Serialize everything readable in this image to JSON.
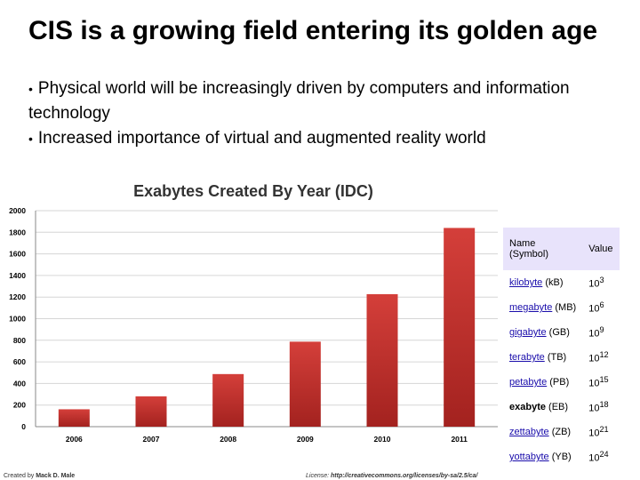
{
  "slide": {
    "title": "CIS is a growing field entering its golden age",
    "bullets": [
      "Physical world will be increasingly driven by computers and information technology",
      "Increased importance of virtual and augmented reality world"
    ]
  },
  "chart_data": {
    "type": "bar",
    "title": "Exabytes Created By Year (IDC)",
    "categories": [
      "2006",
      "2007",
      "2008",
      "2009",
      "2010",
      "2011"
    ],
    "values": [
      161,
      281,
      487,
      787,
      1227,
      1840
    ],
    "ylim": [
      0,
      2000
    ],
    "yticks": [
      "0",
      "200",
      "400",
      "600",
      "800",
      "1000",
      "1200",
      "1400",
      "1600",
      "1800",
      "2000"
    ],
    "grid": true,
    "bar_color": "#c8302e"
  },
  "units_table": {
    "headers": [
      "Name\n(Symbol)",
      "Value"
    ],
    "rows": [
      {
        "name": "kilobyte",
        "symbol": "(kB)",
        "base": "10",
        "exp": "3",
        "link": true
      },
      {
        "name": "megabyte",
        "symbol": "(MB)",
        "base": "10",
        "exp": "6",
        "link": true
      },
      {
        "name": "gigabyte",
        "symbol": "(GB)",
        "base": "10",
        "exp": "9",
        "link": true
      },
      {
        "name": "terabyte",
        "symbol": "(TB)",
        "base": "10",
        "exp": "12",
        "link": true
      },
      {
        "name": "petabyte",
        "symbol": "(PB)",
        "base": "10",
        "exp": "15",
        "link": true
      },
      {
        "name": "exabyte",
        "symbol": "(EB)",
        "base": "10",
        "exp": "18",
        "link": false
      },
      {
        "name": "zettabyte",
        "symbol": "(ZB)",
        "base": "10",
        "exp": "21",
        "link": true
      },
      {
        "name": "yottabyte",
        "symbol": "(YB)",
        "base": "10",
        "exp": "24",
        "link": true
      }
    ]
  },
  "footer": {
    "created_by_label": "Created by",
    "author": "Mack D. Male",
    "license_label": "License:",
    "license_url": "http://creativecommons.org/licenses/by-sa/2.5/ca/"
  }
}
